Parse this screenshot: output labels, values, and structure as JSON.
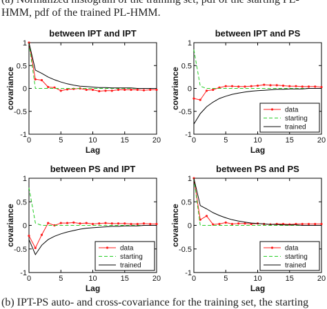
{
  "captions": {
    "top_line1": "(a) Normalized histogram of the training set, pdf of the starting PL-",
    "top_line2": "HMM, pdf of the trained PL-HMM.",
    "bottom": "(b) IPT-PS auto- and cross-covariance for the training set, the starting"
  },
  "colors": {
    "data": "#ff1a1a",
    "starting": "#22cc22",
    "trained": "#000000",
    "axes": "#000000"
  },
  "chart_data": [
    {
      "type": "line",
      "title": "between IPT and IPT",
      "xlabel": "Lag",
      "ylabel": "covariance",
      "xlim": [
        0,
        20
      ],
      "ylim": [
        -1,
        1
      ],
      "xticks": [
        0,
        5,
        10,
        15,
        20
      ],
      "yticks": [
        -1,
        -0.5,
        0,
        0.5,
        1
      ],
      "ytick_labels": [
        "-1",
        "-0.5",
        "0",
        "0.5",
        "1"
      ],
      "legend": "none",
      "x": [
        0,
        1,
        2,
        3,
        4,
        5,
        6,
        7,
        8,
        9,
        10,
        11,
        12,
        13,
        14,
        15,
        16,
        17,
        18,
        19,
        20
      ],
      "series": [
        {
          "name": "data",
          "style": "line-dots",
          "values": [
            1,
            0.2,
            0.18,
            0.03,
            0.02,
            -0.05,
            -0.02,
            -0.01,
            0,
            -0.03,
            -0.03,
            -0.06,
            -0.05,
            -0.05,
            -0.03,
            -0.03,
            -0.03,
            -0.03,
            -0.04,
            -0.03,
            -0.03
          ]
        },
        {
          "name": "starting",
          "style": "dashed",
          "values": [
            1,
            0,
            0,
            0,
            0,
            0,
            0,
            0,
            0,
            0,
            0,
            0,
            0,
            0,
            0,
            0,
            0,
            0,
            0,
            0,
            0
          ]
        },
        {
          "name": "trained",
          "style": "solid",
          "values": [
            1,
            0.4,
            0.33,
            0.25,
            0.19,
            0.14,
            0.1,
            0.07,
            0.05,
            0.04,
            0.03,
            0.02,
            0.02,
            0.01,
            0.01,
            0.01,
            0.01,
            0,
            0,
            0,
            0
          ]
        }
      ]
    },
    {
      "type": "line",
      "title": "between IPT and PS",
      "xlabel": "Lag",
      "ylabel": "covariance",
      "xlim": [
        0,
        20
      ],
      "ylim": [
        -1,
        1
      ],
      "xticks": [
        0,
        5,
        10,
        15,
        20
      ],
      "yticks": [
        -1,
        -0.5,
        0,
        0.5,
        1
      ],
      "ytick_labels": [
        "-1",
        "-0.5",
        "0",
        "0.5",
        "1"
      ],
      "legend": "bottom-right",
      "x": [
        0,
        1,
        2,
        3,
        4,
        5,
        6,
        7,
        8,
        9,
        10,
        11,
        12,
        13,
        14,
        15,
        16,
        17,
        18,
        19,
        20
      ],
      "series": [
        {
          "name": "data",
          "style": "line-dots",
          "values": [
            -0.22,
            -0.25,
            -0.05,
            -0.03,
            0.02,
            0.05,
            0.05,
            0.04,
            0.04,
            0.05,
            0.06,
            0.08,
            0.07,
            0.07,
            0.06,
            0.05,
            0.05,
            0.04,
            0.04,
            0.04,
            0.03
          ]
        },
        {
          "name": "starting",
          "style": "dashed",
          "values": [
            0.85,
            0.05,
            0,
            0,
            0,
            0,
            0,
            0,
            0,
            0,
            0,
            0,
            0,
            0,
            0,
            0,
            0,
            0,
            0,
            0,
            0
          ]
        },
        {
          "name": "trained",
          "style": "solid",
          "values": [
            -0.78,
            -0.55,
            -0.4,
            -0.3,
            -0.22,
            -0.17,
            -0.13,
            -0.1,
            -0.08,
            -0.06,
            -0.05,
            -0.04,
            -0.03,
            -0.02,
            -0.02,
            -0.01,
            -0.01,
            -0.01,
            0,
            0,
            0
          ]
        }
      ]
    },
    {
      "type": "line",
      "title": "between PS and IPT",
      "xlabel": "Lag",
      "ylabel": "covariance",
      "xlim": [
        0,
        20
      ],
      "ylim": [
        -1,
        1
      ],
      "xticks": [
        0,
        5,
        10,
        15,
        20
      ],
      "yticks": [
        -1,
        -0.5,
        0,
        0.5,
        1
      ],
      "ytick_labels": [
        "-1",
        "-0.5",
        "0",
        "0.5",
        "1"
      ],
      "legend": "bottom-right",
      "x": [
        0,
        1,
        2,
        3,
        4,
        5,
        6,
        7,
        8,
        9,
        10,
        11,
        12,
        13,
        14,
        15,
        16,
        17,
        18,
        19,
        20
      ],
      "series": [
        {
          "name": "data",
          "style": "line-dots",
          "values": [
            -0.22,
            -0.48,
            -0.2,
            0.05,
            0,
            0.05,
            0.05,
            0.06,
            0.04,
            0.05,
            0.03,
            0.04,
            0.05,
            0.04,
            0.04,
            0.04,
            0.03,
            0.03,
            0.04,
            0.03,
            0.03
          ]
        },
        {
          "name": "starting",
          "style": "dashed",
          "values": [
            0.8,
            0.05,
            0,
            0,
            0,
            0,
            0,
            0,
            0,
            0,
            0,
            0,
            0,
            0,
            0,
            0,
            0,
            0,
            0,
            0,
            0
          ]
        },
        {
          "name": "trained",
          "style": "solid",
          "values": [
            -0.3,
            -0.62,
            -0.42,
            -0.3,
            -0.23,
            -0.18,
            -0.14,
            -0.11,
            -0.08,
            -0.06,
            -0.05,
            -0.04,
            -0.03,
            -0.02,
            -0.02,
            -0.01,
            -0.01,
            -0.01,
            0,
            0,
            0
          ]
        }
      ]
    },
    {
      "type": "line",
      "title": "between PS and PS",
      "xlabel": "Lag",
      "ylabel": "covariance",
      "xlim": [
        0,
        20
      ],
      "ylim": [
        -1,
        1
      ],
      "xticks": [
        0,
        5,
        10,
        15,
        20
      ],
      "yticks": [
        -1,
        -0.5,
        0,
        0.5,
        1
      ],
      "ytick_labels": [
        "-1",
        "-0.5",
        "0",
        "0.5",
        "1"
      ],
      "legend": "bottom-right",
      "x": [
        0,
        1,
        2,
        3,
        4,
        5,
        6,
        7,
        8,
        9,
        10,
        11,
        12,
        13,
        14,
        15,
        16,
        17,
        18,
        19,
        20
      ],
      "series": [
        {
          "name": "data",
          "style": "line-dots",
          "values": [
            1,
            0.12,
            0.2,
            0.02,
            0.03,
            0.06,
            0.03,
            0.04,
            0.04,
            0.03,
            0.04,
            0.03,
            0.02,
            0.03,
            0.03,
            0.02,
            0.03,
            0.03,
            0.03,
            0.03,
            0.03
          ]
        },
        {
          "name": "starting",
          "style": "dashed",
          "values": [
            1,
            0,
            0,
            0,
            0,
            0,
            0,
            0,
            0,
            0,
            0,
            0,
            0,
            0,
            0,
            0,
            0,
            0,
            0,
            0,
            0
          ]
        },
        {
          "name": "trained",
          "style": "solid",
          "values": [
            1,
            0.42,
            0.35,
            0.27,
            0.21,
            0.16,
            0.12,
            0.09,
            0.07,
            0.05,
            0.04,
            0.03,
            0.02,
            0.02,
            0.01,
            0.01,
            0.01,
            0,
            0,
            0,
            0
          ]
        }
      ]
    }
  ]
}
